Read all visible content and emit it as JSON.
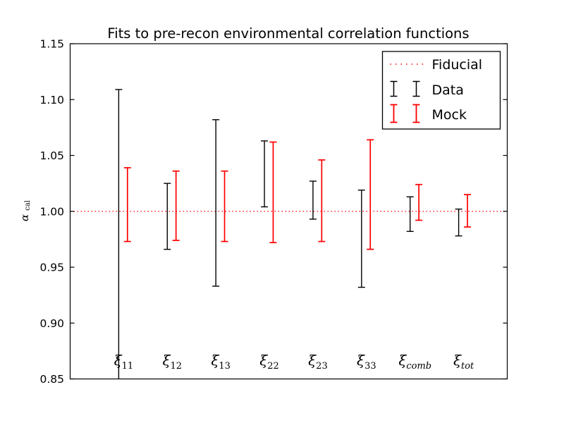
{
  "chart_data": {
    "type": "errorbar",
    "title": "Fits to pre-recon environmental correlation functions",
    "ylabel": {
      "symbol": "α",
      "subscript": "cal"
    },
    "xlabel": "",
    "ylim": [
      0.85,
      1.15
    ],
    "xlim": [
      0,
      9
    ],
    "yticks": [
      0.85,
      0.9,
      0.95,
      1.0,
      1.05,
      1.1,
      1.15
    ],
    "ytick_labels": [
      "0.85",
      "0.90",
      "0.95",
      "1.00",
      "1.05",
      "1.10",
      "1.15"
    ],
    "grid": false,
    "x_positions": [
      1,
      2,
      3,
      4,
      5,
      6,
      7,
      8
    ],
    "categories": [
      {
        "base": "ξ",
        "sub": "11",
        "italic_sub": false
      },
      {
        "base": "ξ",
        "sub": "12",
        "italic_sub": false
      },
      {
        "base": "ξ",
        "sub": "13",
        "italic_sub": false
      },
      {
        "base": "ξ",
        "sub": "22",
        "italic_sub": false
      },
      {
        "base": "ξ",
        "sub": "23",
        "italic_sub": false
      },
      {
        "base": "ξ",
        "sub": "33",
        "italic_sub": false
      },
      {
        "base": "ξ",
        "sub": "comb",
        "italic_sub": true
      },
      {
        "base": "ξ",
        "sub": "tot",
        "italic_sub": true
      }
    ],
    "fiducial": {
      "label": "Fiducial",
      "value": 1.0,
      "color": "#ff0000",
      "style": "dotted"
    },
    "series": [
      {
        "name": "Data",
        "color": "#000000",
        "x_offset": 0.0,
        "bars": [
          {
            "high": 1.109,
            "low": 0.85,
            "clipped_low": true
          },
          {
            "high": 1.025,
            "low": 0.966,
            "clipped_low": false
          },
          {
            "high": 1.082,
            "low": 0.933,
            "clipped_low": false
          },
          {
            "high": 1.063,
            "low": 1.004,
            "clipped_low": false
          },
          {
            "high": 1.027,
            "low": 0.993,
            "clipped_low": false
          },
          {
            "high": 1.019,
            "low": 0.932,
            "clipped_low": false
          },
          {
            "high": 1.013,
            "low": 0.982,
            "clipped_low": false
          },
          {
            "high": 1.002,
            "low": 0.978,
            "clipped_low": false
          }
        ]
      },
      {
        "name": "Mock",
        "color": "#ff0000",
        "x_offset": 0.18,
        "bars": [
          {
            "high": 1.039,
            "low": 0.973,
            "clipped_low": false
          },
          {
            "high": 1.036,
            "low": 0.974,
            "clipped_low": false
          },
          {
            "high": 1.036,
            "low": 0.973,
            "clipped_low": false
          },
          {
            "high": 1.062,
            "low": 0.972,
            "clipped_low": false
          },
          {
            "high": 1.046,
            "low": 0.973,
            "clipped_low": false
          },
          {
            "high": 1.064,
            "low": 0.966,
            "clipped_low": false
          },
          {
            "high": 1.024,
            "low": 0.992,
            "clipped_low": false
          },
          {
            "high": 1.015,
            "low": 0.986,
            "clipped_low": false
          }
        ]
      }
    ],
    "legend": {
      "position": "upper right",
      "entries": [
        {
          "label": "Fiducial",
          "type": "dotted-line",
          "color": "#ff0000"
        },
        {
          "label": "Data",
          "type": "errorbar",
          "color": "#000000"
        },
        {
          "label": "Mock",
          "type": "errorbar",
          "color": "#ff0000"
        }
      ]
    },
    "colors": {
      "frame": "#000000",
      "background": "#ffffff",
      "data_series": "#000000",
      "mock_series": "#ff0000",
      "fiducial_line": "#ff0000"
    }
  }
}
